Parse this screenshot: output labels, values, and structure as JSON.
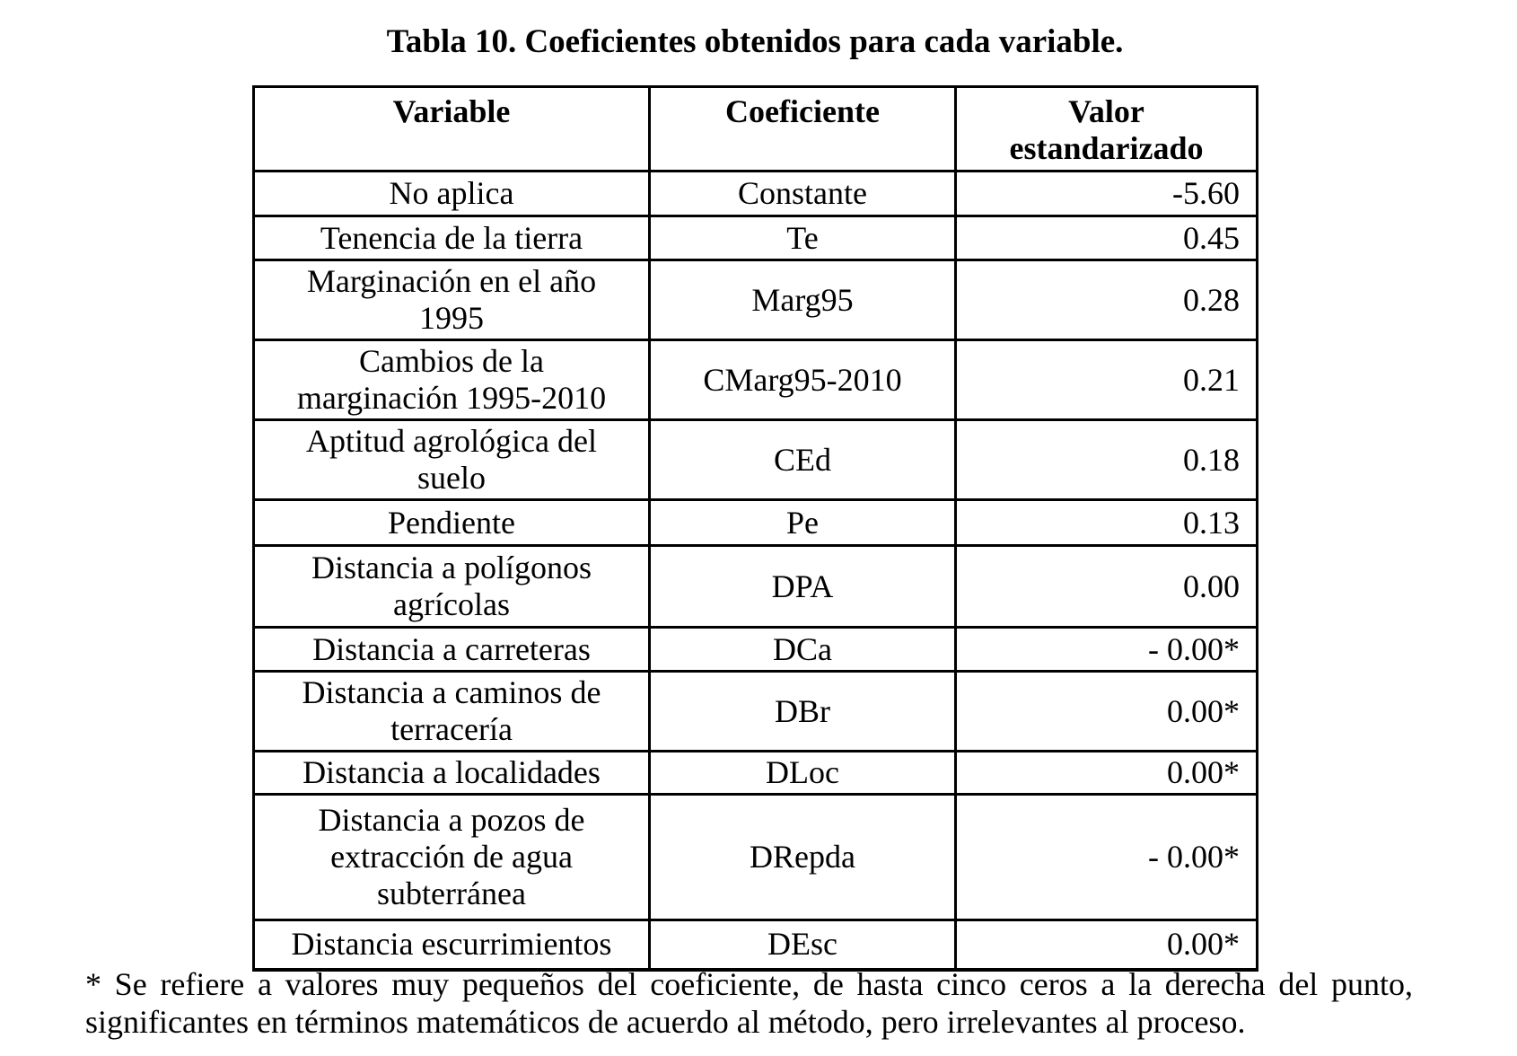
{
  "page": {
    "title": "Tabla 10. Coeficientes obtenidos para cada variable."
  },
  "table": {
    "columns": {
      "variable": "Variable",
      "coeficiente": "Coeficiente",
      "valor": "Valor\nestandarizado"
    },
    "rows": [
      {
        "variable": "No aplica",
        "coeficiente": "Constante",
        "valor": "-5.60"
      },
      {
        "variable": "Tenencia de la tierra",
        "coeficiente": "Te",
        "valor": "0.45"
      },
      {
        "variable": "Marginación en el año\n1995",
        "coeficiente": "Marg95",
        "valor": "0.28"
      },
      {
        "variable": "Cambios de la\nmarginación 1995-2010",
        "coeficiente": "CMarg95-2010",
        "valor": "0.21"
      },
      {
        "variable": "Aptitud agrológica del\nsuelo",
        "coeficiente": "CEd",
        "valor": "0.18"
      },
      {
        "variable": "Pendiente",
        "coeficiente": "Pe",
        "valor": "0.13"
      },
      {
        "variable": "Distancia a polígonos\nagrícolas",
        "coeficiente": "DPA",
        "valor": "0.00"
      },
      {
        "variable": "Distancia a carreteras",
        "coeficiente": "DCa",
        "valor": "- 0.00*"
      },
      {
        "variable": "Distancia a caminos de\nterracería",
        "coeficiente": "DBr",
        "valor": "0.00*"
      },
      {
        "variable": "Distancia a localidades",
        "coeficiente": "DLoc",
        "valor": "0.00*"
      },
      {
        "variable": "Distancia a pozos de\nextracción de agua\nsubterránea",
        "coeficiente": "DRepda",
        "valor": "- 0.00*"
      },
      {
        "variable": "Distancia escurrimientos",
        "coeficiente": "DEsc",
        "valor": "0.00*"
      }
    ]
  },
  "footnote": {
    "lines": [
      "* Se refiere a valores muy pequeños del coeficiente, de hasta cinco ceros a la derecha del punto,",
      "significantes en términos matemáticos de acuerdo al método, pero irrelevantes al proceso."
    ]
  }
}
